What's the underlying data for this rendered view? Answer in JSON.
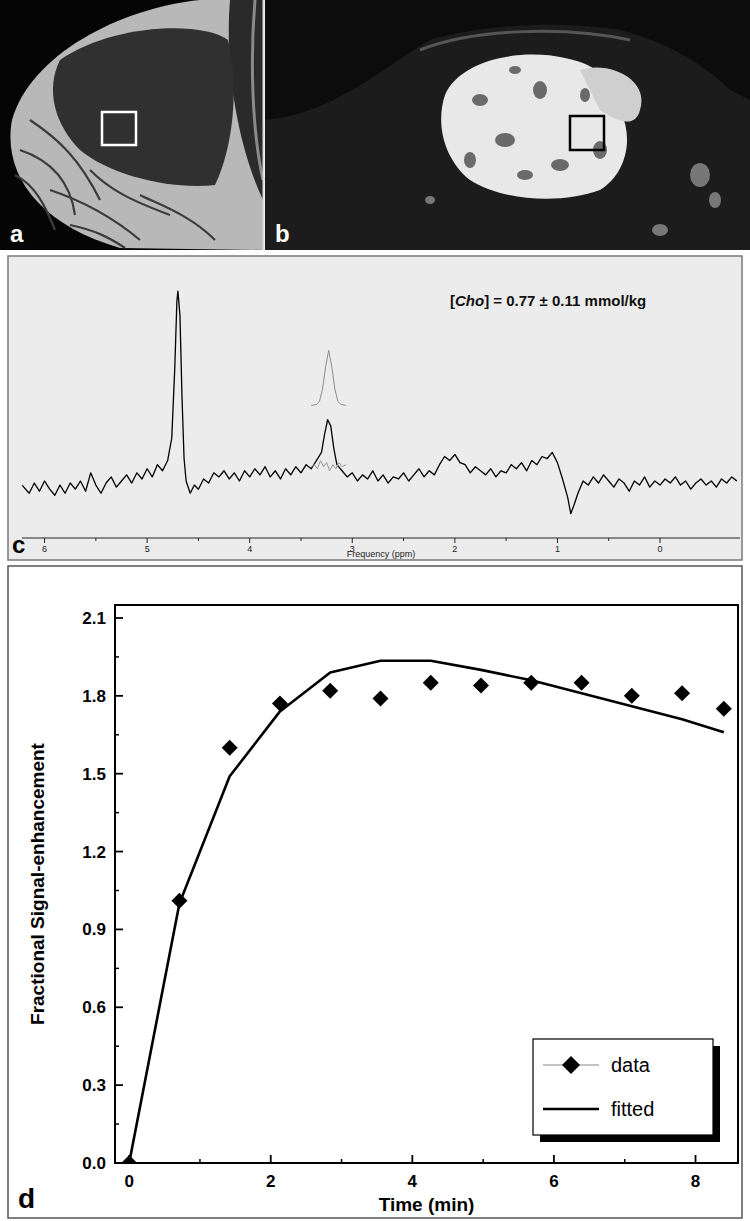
{
  "panel_labels": [
    "a",
    "b",
    "c",
    "d"
  ],
  "chart_data": [
    {
      "type": "line",
      "x_label": "Frequency (ppm)",
      "annotation": "[Cho] = 0.77 ± 0.11 mmol/kg",
      "xlim": [
        6.22,
        -0.78
      ],
      "xticks": [
        6,
        5,
        4,
        3,
        2,
        1,
        0
      ],
      "ylim": [
        -20,
        100
      ],
      "tick_labels": "x",
      "series": [
        {
          "color": "#000000",
          "x": [
            6.22,
            6.15,
            6.1,
            6.05,
            6.0,
            5.95,
            5.9,
            5.85,
            5.8,
            5.75,
            5.7,
            5.65,
            5.6,
            5.55,
            5.5,
            5.45,
            5.4,
            5.35,
            5.3,
            5.25,
            5.2,
            5.15,
            5.1,
            5.05,
            5.0,
            4.95,
            4.9,
            4.85,
            4.8,
            4.76,
            4.73,
            4.71,
            4.7,
            4.68,
            4.66,
            4.64,
            4.62,
            4.58,
            4.54,
            4.5,
            4.45,
            4.4,
            4.35,
            4.3,
            4.25,
            4.2,
            4.15,
            4.1,
            4.05,
            4.0,
            3.95,
            3.9,
            3.85,
            3.8,
            3.75,
            3.7,
            3.65,
            3.6,
            3.55,
            3.5,
            3.45,
            3.4,
            3.35,
            3.3,
            3.27,
            3.24,
            3.21,
            3.18,
            3.15,
            3.1,
            3.05,
            3.0,
            2.95,
            2.9,
            2.85,
            2.8,
            2.75,
            2.7,
            2.65,
            2.6,
            2.55,
            2.5,
            2.45,
            2.4,
            2.35,
            2.3,
            2.25,
            2.2,
            2.15,
            2.1,
            2.05,
            2.0,
            1.95,
            1.9,
            1.85,
            1.8,
            1.75,
            1.7,
            1.65,
            1.6,
            1.55,
            1.5,
            1.45,
            1.4,
            1.35,
            1.3,
            1.25,
            1.2,
            1.15,
            1.1,
            1.05,
            1.0,
            0.95,
            0.9,
            0.87,
            0.84,
            0.8,
            0.75,
            0.7,
            0.65,
            0.6,
            0.55,
            0.5,
            0.45,
            0.4,
            0.35,
            0.3,
            0.25,
            0.2,
            0.15,
            0.1,
            0.05,
            0.0,
            -0.05,
            -0.1,
            -0.15,
            -0.2,
            -0.25,
            -0.3,
            -0.35,
            -0.4,
            -0.45,
            -0.5,
            -0.55,
            -0.6,
            -0.65,
            -0.7,
            -0.75
          ],
          "values": [
            2,
            -2,
            3,
            -1,
            4,
            0,
            -3,
            2,
            -2,
            3,
            0,
            4,
            -1,
            8,
            2,
            -2,
            3,
            6,
            1,
            4,
            7,
            3,
            8,
            5,
            10,
            6,
            12,
            9,
            14,
            25,
            60,
            92,
            97,
            85,
            45,
            15,
            4,
            -2,
            2,
            0,
            5,
            3,
            8,
            6,
            9,
            5,
            8,
            4,
            9,
            6,
            10,
            7,
            11,
            6,
            9,
            5,
            10,
            7,
            11,
            8,
            12,
            10,
            14,
            18,
            27,
            34,
            31,
            20,
            12,
            9,
            6,
            8,
            4,
            7,
            5,
            9,
            4,
            7,
            3,
            6,
            5,
            8,
            4,
            7,
            10,
            6,
            9,
            7,
            12,
            16,
            14,
            17,
            13,
            12,
            8,
            11,
            9,
            7,
            10,
            6,
            9,
            8,
            12,
            10,
            13,
            9,
            14,
            12,
            16,
            15,
            18,
            13,
            5,
            -4,
            -12,
            -8,
            -2,
            4,
            2,
            6,
            3,
            7,
            4,
            1,
            5,
            3,
            -1,
            4,
            2,
            6,
            1,
            4,
            2,
            5,
            3,
            6,
            2,
            4,
            0,
            3,
            5,
            2,
            4,
            1,
            5,
            3,
            6,
            4
          ]
        },
        {
          "color": "#8c8c8c",
          "x": [
            3.4,
            3.35,
            3.32,
            3.29,
            3.26,
            3.23,
            3.2,
            3.17,
            3.14,
            3.11,
            3.06
          ],
          "values": [
            41,
            41.5,
            43,
            49,
            60,
            68,
            60,
            49,
            43,
            41.5,
            41
          ]
        },
        {
          "color": "#999999",
          "x": [
            3.4,
            3.37,
            3.34,
            3.31,
            3.28,
            3.25,
            3.22,
            3.19,
            3.16,
            3.13,
            3.1,
            3.06
          ],
          "values": [
            11,
            12,
            10,
            14,
            11,
            13,
            9,
            12,
            10,
            13,
            11,
            12
          ]
        }
      ]
    },
    {
      "type": "scatter",
      "x_label": "Time (min)",
      "y_label": "Fractional Signal-enhancement",
      "xlim": [
        -0.2,
        8.6
      ],
      "xticks": [
        0,
        2,
        4,
        6,
        8
      ],
      "ylim": [
        0,
        2.15
      ],
      "yticks": [
        {
          "value": 0,
          "label": "0.0"
        },
        0.3,
        0.6,
        0.9,
        1.2,
        1.5,
        1.8,
        2.1
      ],
      "legend": "lower right",
      "x": [
        0,
        0.71,
        1.42,
        2.13,
        2.84,
        3.55,
        4.26,
        4.97,
        5.68,
        6.39,
        7.1,
        7.81,
        8.4
      ],
      "series": [
        {
          "name": "data",
          "type": "scatter",
          "marker": "diamond",
          "line_style": "none",
          "color": "#000000",
          "values": [
            0,
            1.01,
            1.6,
            1.77,
            1.82,
            1.79,
            1.85,
            1.84,
            1.85,
            1.85,
            1.8,
            1.81,
            1.75
          ]
        },
        {
          "name": "fitted",
          "type": "line",
          "line_style": "solid",
          "color": "#000000",
          "values": [
            0,
            1.0,
            1.49,
            1.74,
            1.89,
            1.935,
            1.935,
            1.9,
            1.86,
            1.81,
            1.76,
            1.71,
            1.66
          ]
        }
      ]
    }
  ]
}
